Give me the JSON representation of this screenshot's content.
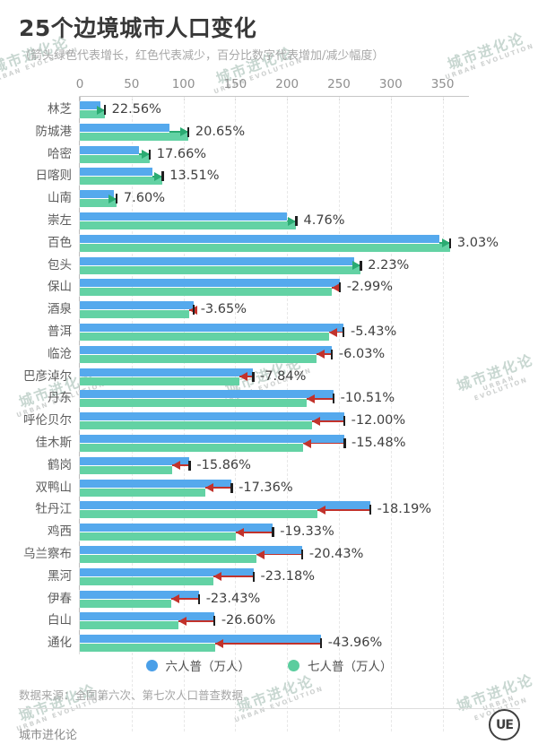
{
  "page": {
    "title": "25个边境城市人口变化",
    "subtitle": "（箭头绿色代表增长，红色代表减少，百分比数字代表增加/减少幅度）"
  },
  "chart_data": {
    "type": "bar",
    "orientation": "horizontal",
    "title": "25个边境城市人口变化",
    "unit": "万人",
    "x_ticks": [
      0,
      50,
      100,
      150,
      200,
      250,
      300,
      350
    ],
    "xlim": [
      0,
      375
    ],
    "grid": "vertical-dashed",
    "legend_position": "bottom",
    "series": [
      "六人普（万人）",
      "七人普（万人）"
    ],
    "rows": [
      {
        "city": "林芝",
        "census6": 19.5,
        "census7": 23.9,
        "change": "22.56%"
      },
      {
        "city": "防城港",
        "census6": 86.7,
        "census7": 104.6,
        "change": "20.65%"
      },
      {
        "city": "哈密",
        "census6": 57.2,
        "census7": 67.3,
        "change": "17.66%"
      },
      {
        "city": "日喀则",
        "census6": 70.3,
        "census7": 79.8,
        "change": "13.51%"
      },
      {
        "city": "山南",
        "census6": 32.9,
        "census7": 35.4,
        "change": "7.60%"
      },
      {
        "city": "崇左",
        "census6": 199.4,
        "census7": 208.9,
        "change": "4.76%"
      },
      {
        "city": "百色",
        "census6": 346.7,
        "census7": 357.2,
        "change": "3.03%"
      },
      {
        "city": "包头",
        "census6": 265.1,
        "census7": 271.0,
        "change": "2.23%"
      },
      {
        "city": "保山",
        "census6": 250.6,
        "census7": 243.1,
        "change": "-2.99%"
      },
      {
        "city": "酒泉",
        "census6": 109.6,
        "census7": 105.6,
        "change": "-3.65%"
      },
      {
        "city": "普洱",
        "census6": 254.3,
        "census7": 240.5,
        "change": "-5.43%"
      },
      {
        "city": "临沧",
        "census6": 243.0,
        "census7": 228.4,
        "change": "-6.03%"
      },
      {
        "city": "巴彦淖尔",
        "census6": 167.0,
        "census7": 153.9,
        "change": "-7.84%"
      },
      {
        "city": "丹东",
        "census6": 244.5,
        "census7": 218.8,
        "change": "-10.51%"
      },
      {
        "city": "呼伦贝尔",
        "census6": 254.9,
        "census7": 224.3,
        "change": "-12.00%"
      },
      {
        "city": "佳木斯",
        "census6": 255.2,
        "census7": 215.7,
        "change": "-15.48%"
      },
      {
        "city": "鹤岗",
        "census6": 105.9,
        "census7": 89.1,
        "change": "-15.86%"
      },
      {
        "city": "双鸭山",
        "census6": 146.3,
        "census7": 120.9,
        "change": "-17.36%"
      },
      {
        "city": "牡丹江",
        "census6": 279.9,
        "census7": 229.0,
        "change": "-18.19%"
      },
      {
        "city": "鸡西",
        "census6": 186.2,
        "census7": 150.2,
        "change": "-19.33%"
      },
      {
        "city": "乌兰察布",
        "census6": 214.4,
        "census7": 170.6,
        "change": "-20.43%"
      },
      {
        "city": "黑河",
        "census6": 167.4,
        "census7": 128.6,
        "change": "-23.18%"
      },
      {
        "city": "伊春",
        "census6": 114.8,
        "census7": 87.9,
        "change": "-23.43%"
      },
      {
        "city": "白山",
        "census6": 129.6,
        "census7": 95.1,
        "change": "-26.60%"
      },
      {
        "city": "通化",
        "census6": 232.5,
        "census7": 130.3,
        "change": "-43.96%"
      }
    ]
  },
  "legend": {
    "items": [
      {
        "label": "六人普（万人）",
        "color": "#4a9fe8"
      },
      {
        "label": "七人普（万人）",
        "color": "#5bcd9e"
      }
    ]
  },
  "colors": {
    "bar_blue": "#55a9ed",
    "bar_green": "#63d2a4",
    "arrow_up": "#2bab72",
    "arrow_down": "#c2322b",
    "end_tick": "#1f1f1f"
  },
  "source": "数据来源：全国第六次、第七次人口普查数据",
  "footer": {
    "brand": "城市进化论",
    "logo_text": "UE"
  },
  "watermark": {
    "line1": "城市进化论",
    "line2": "URBAN EVOLUTION"
  }
}
